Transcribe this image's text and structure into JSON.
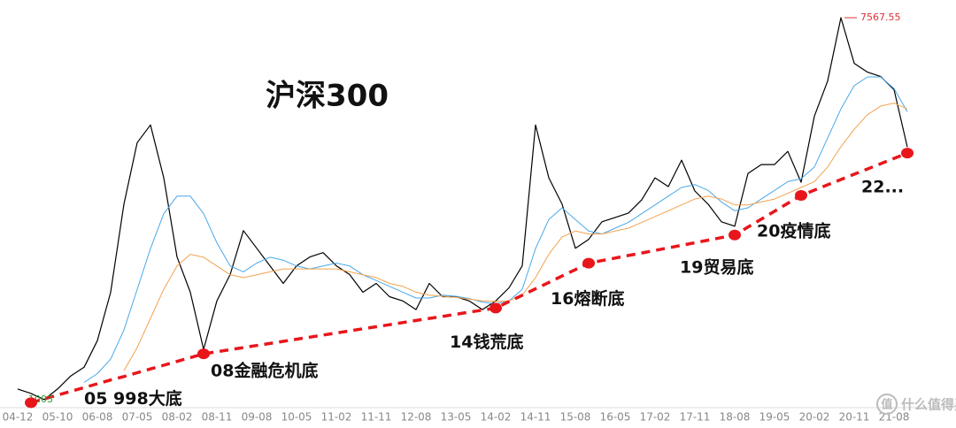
{
  "chart_data": {
    "type": "line",
    "title": "沪深300",
    "categories": [
      "04-12",
      null,
      null,
      "05-10",
      null,
      null,
      "06-08",
      null,
      null,
      "07-05",
      null,
      null,
      "08-02",
      null,
      null,
      "08-11",
      null,
      null,
      "09-08",
      null,
      null,
      "10-05",
      null,
      null,
      "11-02",
      null,
      null,
      "11-11",
      null,
      null,
      "12-08",
      null,
      null,
      "13-05",
      null,
      null,
      "14-02",
      null,
      null,
      "14-11",
      null,
      null,
      "15-08",
      null,
      null,
      "16-05",
      null,
      null,
      "17-02",
      null,
      null,
      "17-11",
      null,
      null,
      "18-08",
      null,
      null,
      "19-05",
      null,
      null,
      "20-02",
      null,
      null,
      "20-11",
      null,
      null,
      "21-08",
      null
    ],
    "ylim": [
      880,
      7720
    ],
    "series": [
      {
        "color": "#000000",
        "width": 1.2,
        "values": [
          1185,
          1110,
          1003,
          1185,
          1410,
          1560,
          2017,
          2849,
          4362,
          5421,
          5724,
          4816,
          3455,
          2849,
          1866,
          2700,
          3152,
          3908,
          3605,
          3303,
          3000,
          3303,
          3455,
          3530,
          3303,
          3152,
          2849,
          3000,
          2773,
          2700,
          2550,
          3000,
          2773,
          2773,
          2700,
          2550,
          2700,
          2925,
          3303,
          5724,
          4816,
          4362,
          3605,
          3757,
          4060,
          4135,
          4210,
          4438,
          4816,
          4665,
          5119,
          4589,
          4362,
          4060,
          3984,
          4892,
          5043,
          5043,
          5270,
          4740,
          5875,
          6480,
          7567.55,
          6783,
          6632,
          6556,
          6330,
          5345
        ]
      },
      {
        "color": "#4aa8e8",
        "width": 1,
        "values": [
          null,
          null,
          null,
          null,
          null,
          1300,
          1450,
          1700,
          2200,
          2900,
          3600,
          4200,
          4500,
          4500,
          4200,
          3700,
          3300,
          3200,
          3350,
          3450,
          3400,
          3300,
          3250,
          3300,
          3350,
          3300,
          3150,
          3050,
          2950,
          2850,
          2750,
          2750,
          2800,
          2780,
          2740,
          2680,
          2650,
          2700,
          2900,
          3600,
          4100,
          4300,
          4100,
          3900,
          3850,
          3950,
          4050,
          4200,
          4350,
          4500,
          4650,
          4700,
          4600,
          4400,
          4250,
          4300,
          4450,
          4600,
          4750,
          4800,
          5000,
          5500,
          6000,
          6400,
          6550,
          6550,
          6350,
          5950
        ]
      },
      {
        "color": "#f2a24e",
        "width": 1,
        "values": [
          null,
          null,
          null,
          null,
          null,
          null,
          null,
          null,
          1500,
          1900,
          2400,
          2900,
          3300,
          3500,
          3450,
          3300,
          3150,
          3100,
          3150,
          3200,
          3250,
          3250,
          3250,
          3250,
          3250,
          3200,
          3150,
          3100,
          3000,
          2950,
          2850,
          2800,
          2780,
          2760,
          2730,
          2700,
          2690,
          2700,
          2800,
          3100,
          3500,
          3800,
          3900,
          3850,
          3850,
          3900,
          3950,
          4050,
          4150,
          4250,
          4350,
          4450,
          4500,
          4450,
          4350,
          4350,
          4400,
          4450,
          4550,
          4650,
          4750,
          5000,
          5350,
          5650,
          5900,
          6050,
          6100,
          6000
        ]
      },
      {
        "color": "#e8161b",
        "width": 3.5,
        "dashed": true,
        "values": [
          null,
          950,
          1015,
          1080,
          1145,
          1210,
          1275,
          1340,
          1400,
          1465,
          1530,
          1595,
          1660,
          1725,
          1790,
          1826,
          1862,
          1897,
          1933,
          1969,
          2005,
          2041,
          2076,
          2112,
          2148,
          2184,
          2220,
          2255,
          2291,
          2327,
          2363,
          2399,
          2434,
          2470,
          2506,
          2542,
          2577,
          2687,
          2797,
          2907,
          3017,
          3128,
          3238,
          3348,
          3392,
          3436,
          3480,
          3524,
          3568,
          3612,
          3656,
          3700,
          3744,
          3788,
          3832,
          3968,
          4104,
          4241,
          4377,
          4513,
          4604,
          4695,
          4786,
          4877,
          4968,
          5059,
          5149,
          5240
        ]
      }
    ],
    "annotations": [
      {
        "text": "05 998大底",
        "x": 1,
        "y": 950
      },
      {
        "text": "08金融危机底",
        "x": 14,
        "y": 1790
      },
      {
        "text": "14钱荒底",
        "x": 36,
        "y": 2577
      },
      {
        "text": "16熔断底",
        "x": 43,
        "y": 3348
      },
      {
        "text": "19贸易底",
        "x": 54,
        "y": 3832
      },
      {
        "text": "20疫情底",
        "x": 59,
        "y": 4513
      },
      {
        "text": "22...",
        "x": 67,
        "y": 5240
      }
    ],
    "annotation_color": "#e8161b",
    "watermark": {
      "icon": "值",
      "text": "什么值得买"
    }
  }
}
